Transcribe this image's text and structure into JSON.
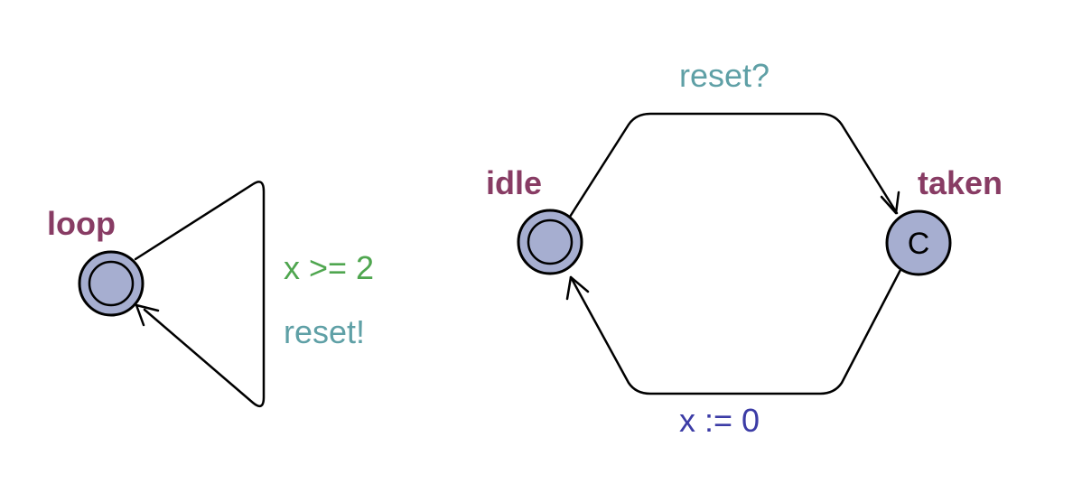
{
  "colors": {
    "location_fill": "#a6aed0",
    "location_name": "#883c64",
    "guard": "#4fa64f",
    "sync": "#5fa0a6",
    "assignment": "#3c3ca6"
  },
  "templates": [
    {
      "locations": [
        {
          "name": "loop",
          "initial": true,
          "committed": false
        }
      ],
      "edges": [
        {
          "source": "loop",
          "target": "loop",
          "guard": "x >= 2",
          "sync": "reset!",
          "assignment": ""
        }
      ]
    },
    {
      "locations": [
        {
          "name": "idle",
          "initial": true,
          "committed": false
        },
        {
          "name": "taken",
          "initial": false,
          "committed": true,
          "mark": "C"
        }
      ],
      "edges": [
        {
          "source": "idle",
          "target": "taken",
          "guard": "",
          "sync": "reset?",
          "assignment": ""
        },
        {
          "source": "taken",
          "target": "idle",
          "guard": "",
          "sync": "",
          "assignment": "x := 0"
        }
      ]
    }
  ]
}
